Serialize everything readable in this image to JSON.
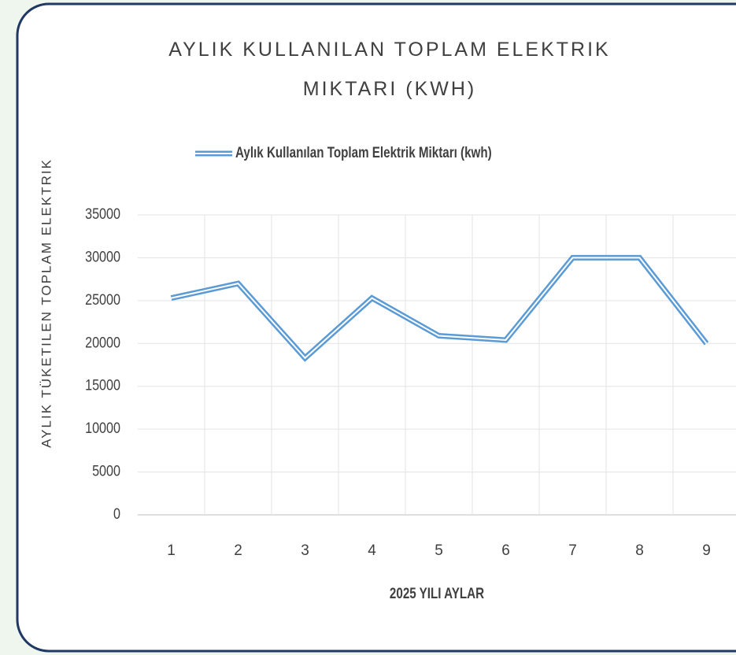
{
  "chart_data": {
    "type": "line",
    "title": "AYLIK KULLANILAN TOPLAM ELEKTRIK MIKTARI (KWH)",
    "x_label": "2025 YILI AYLAR",
    "y_label": "AYLIK TÜKETILEN TOPLAM ELEKTRIK",
    "categories": [
      "1",
      "2",
      "3",
      "4",
      "5",
      "6",
      "7",
      "8",
      "9"
    ],
    "series": [
      {
        "name": "Aylık Kullanılan Toplam Elektrik Miktarı (kwh)",
        "color": "#5b9bd5",
        "values": [
          25300,
          27000,
          18300,
          25300,
          20900,
          20400,
          30000,
          30000,
          20000
        ]
      }
    ],
    "ylim": [
      0,
      35000
    ],
    "yticks": [
      0,
      5000,
      10000,
      15000,
      20000,
      25000,
      30000,
      35000
    ],
    "grid": true,
    "legend": "top"
  }
}
